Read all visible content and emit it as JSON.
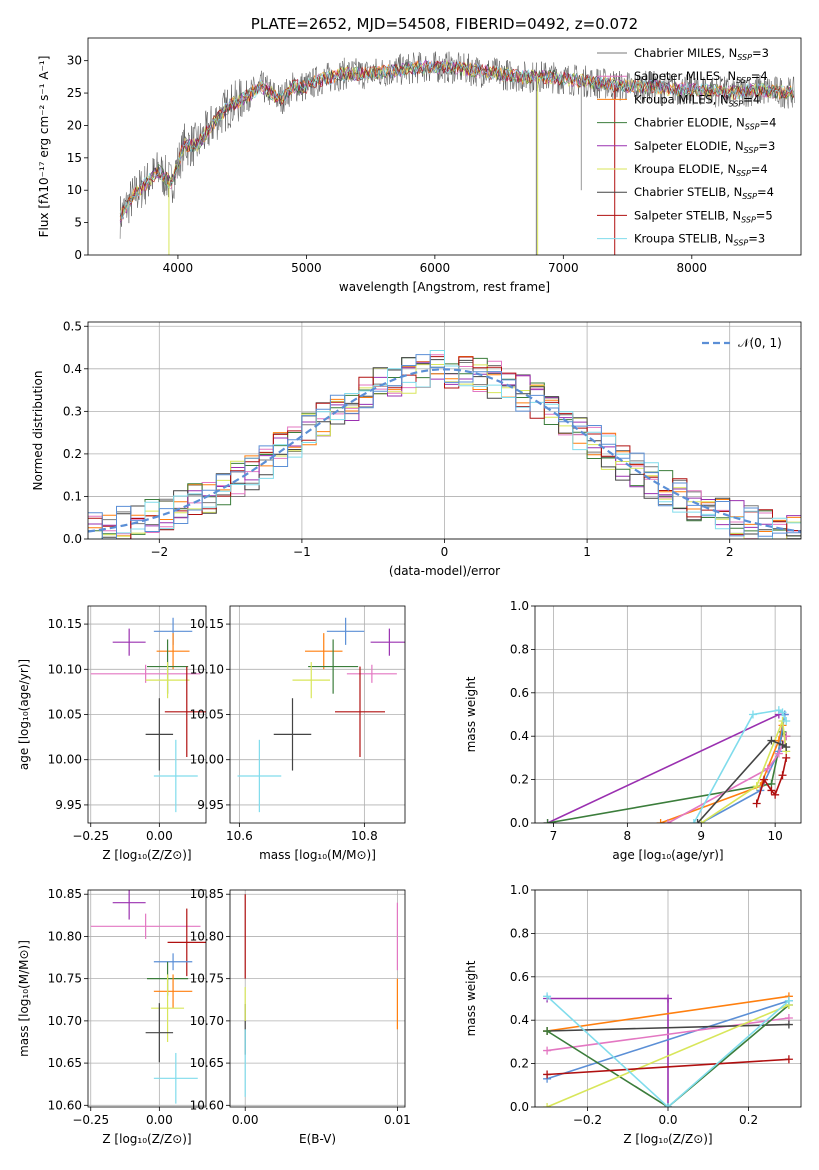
{
  "colors": [
    "#7a7a7a",
    "#e377c2",
    "#ff7f0e",
    "#3b7d3b",
    "#9a30b0",
    "#d8e65a",
    "#444444",
    "#b01010",
    "#80dcec"
  ],
  "chart_data": [
    {
      "id": "spectrum",
      "type": "line",
      "title": "PLATE=2652, MJD=54508, FIBERID=0492, z=0.072",
      "xlabel": "wavelength [Angstrom, rest frame]",
      "ylabel": "Flux [fλ10⁻¹⁷ erg cm⁻² s⁻¹ A⁻¹]",
      "xlim": [
        3300,
        8850
      ],
      "ylim": [
        0,
        33.5
      ],
      "xticks": [
        4000,
        5000,
        6000,
        7000,
        8000
      ],
      "yticks": [
        0,
        5,
        10,
        15,
        20,
        25,
        30
      ],
      "continuum": [
        [
          3550,
          6
        ],
        [
          3650,
          9
        ],
        [
          3750,
          11
        ],
        [
          3850,
          13
        ],
        [
          3950,
          11
        ],
        [
          4050,
          17
        ],
        [
          4150,
          17
        ],
        [
          4300,
          21
        ],
        [
          4400,
          23
        ],
        [
          4500,
          24
        ],
        [
          4650,
          26
        ],
        [
          4800,
          24
        ],
        [
          4900,
          26
        ],
        [
          5000,
          26
        ],
        [
          5100,
          27
        ],
        [
          5200,
          27.5
        ],
        [
          5300,
          28
        ],
        [
          5500,
          28
        ],
        [
          5700,
          28.5
        ],
        [
          5900,
          29
        ],
        [
          6100,
          29
        ],
        [
          6300,
          28.5
        ],
        [
          6500,
          28
        ],
        [
          6700,
          27.5
        ],
        [
          6900,
          27.5
        ],
        [
          7100,
          27
        ],
        [
          7300,
          26.5
        ],
        [
          7500,
          26
        ],
        [
          7700,
          26
        ],
        [
          7900,
          25.5
        ],
        [
          8100,
          25.5
        ],
        [
          8300,
          25
        ],
        [
          8500,
          25.5
        ],
        [
          8800,
          25
        ]
      ],
      "legend": [
        {
          "label": "Chabrier MILES, N",
          "sub": "SSP",
          "value": "=3",
          "color": "#7a7a7a"
        },
        {
          "label": "Salpeter MILES, N",
          "sub": "SSP",
          "value": "=4",
          "color": "#e377c2"
        },
        {
          "label": "Kroupa MILES, N",
          "sub": "SSP",
          "value": "=4",
          "color": "#ff7f0e"
        },
        {
          "label": "Chabrier ELODIE, N",
          "sub": "SSP",
          "value": "=4",
          "color": "#3b7d3b"
        },
        {
          "label": "Salpeter ELODIE, N",
          "sub": "SSP",
          "value": "=3",
          "color": "#9a30b0"
        },
        {
          "label": "Kroupa ELODIE, N",
          "sub": "SSP",
          "value": "=4",
          "color": "#d8e65a"
        },
        {
          "label": "Chabrier STELIB, N",
          "sub": "SSP",
          "value": "=4",
          "color": "#444444"
        },
        {
          "label": "Salpeter STELIB, N",
          "sub": "SSP",
          "value": "=5",
          "color": "#b01010"
        },
        {
          "label": "Kroupa STELIB, N",
          "sub": "SSP",
          "value": "=3",
          "color": "#80dcec"
        }
      ]
    },
    {
      "id": "residuals",
      "type": "line",
      "xlabel": "(data-model)/error",
      "ylabel": "Normed distribution",
      "xlim": [
        -2.5,
        2.5
      ],
      "ylim": [
        0,
        0.51
      ],
      "xticks": [
        -2,
        -1,
        0,
        1,
        2
      ],
      "yticks": [
        0.0,
        0.1,
        0.2,
        0.3,
        0.4,
        0.5
      ],
      "legend_label": "𝒩(0, 1)",
      "legend_color": "#5b8fd6",
      "bin_width": 0.1
    },
    {
      "id": "age_vs_Z",
      "type": "scatter",
      "xlabel": "Z [log₁₀(Z/Z⊙)]",
      "ylabel": "age  [log₁₀(age/yr)]",
      "xlim": [
        -0.26,
        0.17
      ],
      "ylim": [
        9.93,
        10.17
      ],
      "xticks": [
        -0.25,
        0.0
      ],
      "yticks": [
        9.95,
        10.0,
        10.05,
        10.1,
        10.15
      ],
      "points": [
        {
          "x": -0.11,
          "y": 10.13,
          "xerr": 0.06,
          "yerr": 0.015,
          "color": "#9a30b0"
        },
        {
          "x": 0.05,
          "y": 10.142,
          "xerr": 0.07,
          "yerr": 0.015,
          "color": "#5b8fd6"
        },
        {
          "x": 0.05,
          "y": 10.12,
          "xerr": 0.06,
          "yerr": 0.02,
          "color": "#ff7f0e"
        },
        {
          "x": 0.03,
          "y": 10.103,
          "xerr": 0.075,
          "yerr": 0.03,
          "color": "#3b7d3b"
        },
        {
          "x": -0.05,
          "y": 10.095,
          "xerr": 0.2,
          "yerr": 0.01,
          "color": "#e377c2"
        },
        {
          "x": 0.03,
          "y": 10.088,
          "xerr": 0.08,
          "yerr": 0.02,
          "color": "#d8e65a"
        },
        {
          "x": 0.0,
          "y": 10.028,
          "xerr": 0.05,
          "yerr": 0.04,
          "color": "#444444"
        },
        {
          "x": 0.1,
          "y": 10.053,
          "xerr": 0.08,
          "yerr": 0.05,
          "color": "#b01010"
        },
        {
          "x": 0.06,
          "y": 9.982,
          "xerr": 0.08,
          "yerr": 0.04,
          "color": "#80dcec"
        }
      ]
    },
    {
      "id": "age_vs_mass",
      "type": "scatter",
      "xlabel": "mass [log₁₀(M/M⊙)]",
      "ylabel": "",
      "xlim": [
        10.585,
        10.865
      ],
      "ylim": [
        9.93,
        10.17
      ],
      "xticks": [
        10.6,
        10.8
      ],
      "yticks": [
        9.95,
        10.0,
        10.05,
        10.1,
        10.15
      ],
      "points": [
        {
          "x": 10.84,
          "y": 10.13,
          "xerr": 0.03,
          "yerr": 0.015,
          "color": "#9a30b0"
        },
        {
          "x": 10.77,
          "y": 10.142,
          "xerr": 0.03,
          "yerr": 0.015,
          "color": "#5b8fd6"
        },
        {
          "x": 10.735,
          "y": 10.12,
          "xerr": 0.03,
          "yerr": 0.02,
          "color": "#ff7f0e"
        },
        {
          "x": 10.75,
          "y": 10.103,
          "xerr": 0.04,
          "yerr": 0.03,
          "color": "#3b7d3b"
        },
        {
          "x": 10.812,
          "y": 10.095,
          "xerr": 0.04,
          "yerr": 0.01,
          "color": "#e377c2"
        },
        {
          "x": 10.715,
          "y": 10.088,
          "xerr": 0.03,
          "yerr": 0.02,
          "color": "#d8e65a"
        },
        {
          "x": 10.685,
          "y": 10.028,
          "xerr": 0.03,
          "yerr": 0.04,
          "color": "#444444"
        },
        {
          "x": 10.793,
          "y": 10.053,
          "xerr": 0.04,
          "yerr": 0.05,
          "color": "#b01010"
        },
        {
          "x": 10.632,
          "y": 9.982,
          "xerr": 0.035,
          "yerr": 0.04,
          "color": "#80dcec"
        }
      ]
    },
    {
      "id": "weight_vs_age",
      "type": "line",
      "xlabel": "age  [log₁₀(age/yr)]",
      "ylabel": "mass weight",
      "xlim": [
        6.75,
        10.35
      ],
      "ylim": [
        0,
        1.0
      ],
      "xticks": [
        7,
        8,
        9,
        10
      ],
      "yticks": [
        0.0,
        0.2,
        0.4,
        0.6,
        0.8,
        1.0
      ],
      "series": [
        {
          "color": "#9a30b0",
          "x": [
            6.92,
            10.05,
            10.13
          ],
          "y": [
            0.0,
            0.5,
            0.5
          ]
        },
        {
          "color": "#3b7d3b",
          "x": [
            6.92,
            9.95,
            10.1,
            10.15
          ],
          "y": [
            0.0,
            0.18,
            0.42,
            0.4
          ]
        },
        {
          "color": "#ff7f0e",
          "x": [
            8.45,
            9.8,
            10.05,
            10.1
          ],
          "y": [
            0.0,
            0.17,
            0.38,
            0.45
          ]
        },
        {
          "color": "#5b8fd6",
          "x": [
            9.0,
            9.8,
            10.05,
            10.13
          ],
          "y": [
            0.0,
            0.15,
            0.33,
            0.5
          ]
        },
        {
          "color": "#e377c2",
          "x": [
            8.55,
            9.9,
            10.05,
            10.15
          ],
          "y": [
            0.0,
            0.25,
            0.32,
            0.4
          ]
        },
        {
          "color": "#d8e65a",
          "x": [
            9.0,
            9.75,
            10.1,
            10.15
          ],
          "y": [
            0.0,
            0.17,
            0.47,
            0.33
          ]
        },
        {
          "color": "#444444",
          "x": [
            8.95,
            9.95,
            10.1,
            10.15
          ],
          "y": [
            0.0,
            0.38,
            0.36,
            0.35
          ]
        },
        {
          "color": "#b01010",
          "x": [
            9.75,
            9.85,
            9.95,
            10.0,
            10.1,
            10.15
          ],
          "y": [
            0.09,
            0.2,
            0.15,
            0.13,
            0.22,
            0.3
          ]
        },
        {
          "color": "#80dcec",
          "x": [
            8.9,
            9.7,
            10.05,
            10.1,
            10.15
          ],
          "y": [
            0.0,
            0.5,
            0.52,
            0.51,
            0.47
          ]
        }
      ]
    },
    {
      "id": "mass_vs_Z",
      "type": "scatter",
      "xlabel": "Z [log₁₀(Z/Z⊙)]",
      "ylabel": "mass [log₁₀(M/M⊙)]",
      "xlim": [
        -0.26,
        0.17
      ],
      "ylim": [
        10.598,
        10.855
      ],
      "xticks": [
        -0.25,
        0.0
      ],
      "yticks": [
        10.6,
        10.65,
        10.7,
        10.75,
        10.8,
        10.85
      ],
      "points": [
        {
          "x": -0.11,
          "y": 10.84,
          "xerr": 0.06,
          "yerr": 0.02,
          "color": "#9a30b0"
        },
        {
          "x": -0.05,
          "y": 10.812,
          "xerr": 0.2,
          "yerr": 0.015,
          "color": "#e377c2"
        },
        {
          "x": 0.1,
          "y": 10.793,
          "xerr": 0.07,
          "yerr": 0.04,
          "color": "#b01010"
        },
        {
          "x": 0.05,
          "y": 10.77,
          "xerr": 0.07,
          "yerr": 0.01,
          "color": "#5b8fd6"
        },
        {
          "x": 0.03,
          "y": 10.75,
          "xerr": 0.075,
          "yerr": 0.02,
          "color": "#3b7d3b"
        },
        {
          "x": 0.05,
          "y": 10.735,
          "xerr": 0.07,
          "yerr": 0.02,
          "color": "#ff7f0e"
        },
        {
          "x": 0.03,
          "y": 10.715,
          "xerr": 0.06,
          "yerr": 0.04,
          "color": "#d8e65a"
        },
        {
          "x": 0.0,
          "y": 10.686,
          "xerr": 0.05,
          "yerr": 0.035,
          "color": "#444444"
        },
        {
          "x": 0.06,
          "y": 10.632,
          "xerr": 0.08,
          "yerr": 0.03,
          "color": "#80dcec"
        }
      ]
    },
    {
      "id": "mass_vs_ebv",
      "type": "scatter",
      "xlabel": "E(B-V)",
      "ylabel": "",
      "xlim": [
        -0.001,
        0.0105
      ],
      "ylim": [
        10.598,
        10.855
      ],
      "xticks": [
        0.0,
        0.01
      ],
      "yticks": [
        10.6,
        10.65,
        10.7,
        10.75,
        10.8,
        10.85
      ],
      "points": [
        {
          "x": 0.0,
          "y": 10.8,
          "xerr": 0,
          "yerr": 0.05,
          "color": "#b01010"
        },
        {
          "x": 0.0,
          "y": 10.69,
          "xerr": 0,
          "yerr": 0.03,
          "color": "#444444"
        },
        {
          "x": 0.0,
          "y": 10.65,
          "xerr": 0,
          "yerr": 0.04,
          "color": "#80dcec"
        },
        {
          "x": 0.0,
          "y": 10.72,
          "xerr": 0,
          "yerr": 0.02,
          "color": "#d8e65a"
        },
        {
          "x": 0.01,
          "y": 10.8,
          "xerr": 0,
          "yerr": 0.04,
          "color": "#e377c2"
        },
        {
          "x": 0.01,
          "y": 10.72,
          "xerr": 0,
          "yerr": 0.03,
          "color": "#ff7f0e"
        }
      ]
    },
    {
      "id": "weight_vs_Z",
      "type": "line",
      "xlabel": "Z [log₁₀(Z/Z⊙)]",
      "ylabel": "mass weight",
      "xlim": [
        -0.33,
        0.33
      ],
      "ylim": [
        0,
        1.0
      ],
      "xticks": [
        -0.2,
        0.0,
        0.2
      ],
      "yticks": [
        0.0,
        0.2,
        0.4,
        0.6,
        0.8,
        1.0
      ],
      "series": [
        {
          "color": "#9a30b0",
          "x": [
            -0.3,
            0.0,
            0.0
          ],
          "y": [
            0.5,
            0.5,
            0.0
          ]
        },
        {
          "color": "#ff7f0e",
          "x": [
            -0.3,
            0.3
          ],
          "y": [
            0.35,
            0.51
          ]
        },
        {
          "color": "#5b8fd6",
          "x": [
            -0.3,
            0.3
          ],
          "y": [
            0.13,
            0.49
          ]
        },
        {
          "color": "#e377c2",
          "x": [
            -0.3,
            0.3
          ],
          "y": [
            0.26,
            0.41
          ]
        },
        {
          "color": "#444444",
          "x": [
            -0.3,
            0.3
          ],
          "y": [
            0.35,
            0.38
          ]
        },
        {
          "color": "#3b7d3b",
          "x": [
            -0.3,
            0.0,
            0.3
          ],
          "y": [
            0.35,
            0.0,
            0.47
          ]
        },
        {
          "color": "#d8e65a",
          "x": [
            -0.3,
            0.3
          ],
          "y": [
            0.0,
            0.47
          ]
        },
        {
          "color": "#b01010",
          "x": [
            -0.3,
            0.3
          ],
          "y": [
            0.15,
            0.22
          ]
        },
        {
          "color": "#80dcec",
          "x": [
            -0.3,
            0.0,
            0.3
          ],
          "y": [
            0.51,
            0.0,
            0.49
          ]
        }
      ]
    }
  ]
}
